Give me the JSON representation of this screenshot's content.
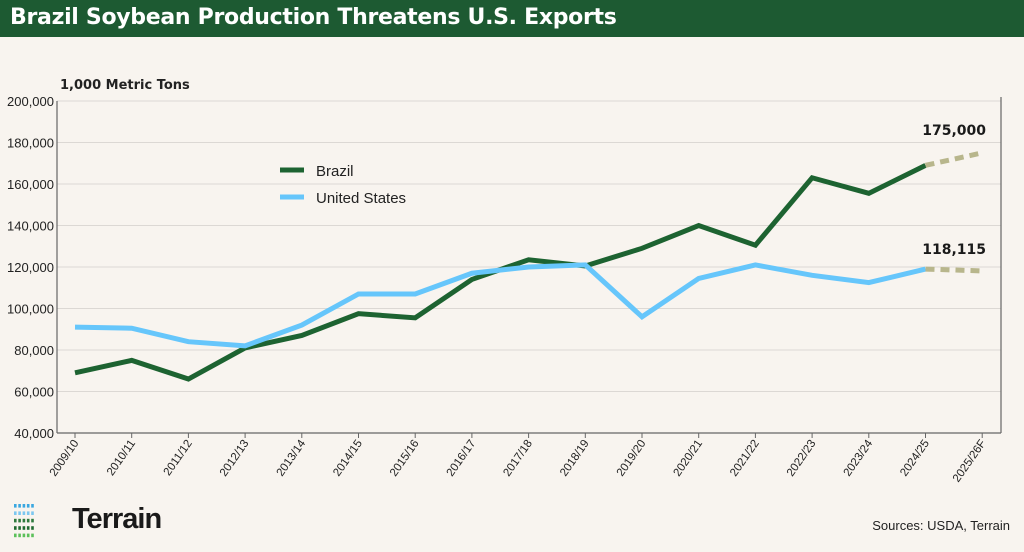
{
  "chart_data": {
    "type": "line",
    "title": "Brazil Soybean Production Threatens U.S. Exports",
    "ylabel": "1,000 Metric Tons",
    "xlabel": "",
    "ylim": [
      40000,
      200000
    ],
    "yticks": [
      "40,000",
      "60,000",
      "80,000",
      "100,000",
      "120,000",
      "140,000",
      "160,000",
      "180,000",
      "200,000"
    ],
    "grid": true,
    "legend_position": "upper-left-center",
    "categories": [
      "2009/10",
      "2010/11",
      "2011/12",
      "2012/13",
      "2013/14",
      "2014/15",
      "2015/16",
      "2016/17",
      "2017/18",
      "2018/19",
      "2019/20",
      "2020/21",
      "2021/22",
      "2022/23",
      "2023/24",
      "2024/25",
      "2025/26F"
    ],
    "series": [
      {
        "name": "Brazil",
        "color": "#1d6331",
        "values": [
          69000,
          75000,
          66000,
          81000,
          87000,
          97500,
          95500,
          114000,
          123500,
          120500,
          129000,
          140000,
          130500,
          163000,
          155500,
          169000,
          175000
        ]
      },
      {
        "name": "United States",
        "color": "#66c6fb",
        "values": [
          91000,
          90500,
          84000,
          82000,
          92000,
          107000,
          107000,
          117000,
          120000,
          121000,
          96000,
          114500,
          121000,
          116000,
          112500,
          119000,
          118115
        ]
      }
    ],
    "forecast_color": "#b8b68c",
    "annotations": [
      "175,000",
      "118,115"
    ]
  },
  "footer": {
    "brand": "Terrain",
    "sources": "Sources: USDA, Terrain"
  }
}
